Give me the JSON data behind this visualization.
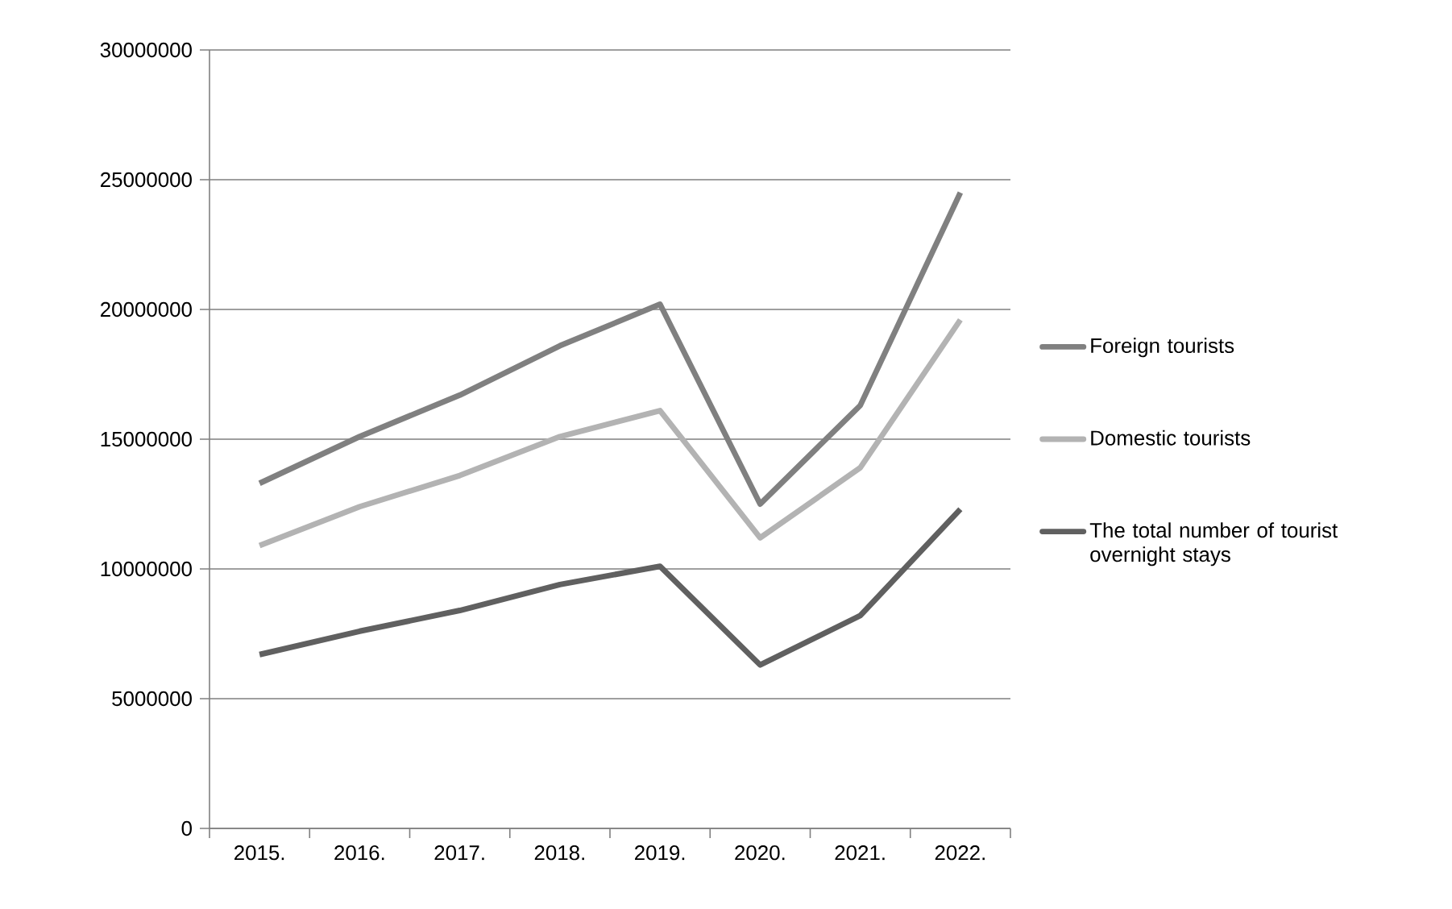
{
  "chart_data": {
    "type": "line",
    "categories": [
      "2015.",
      "2016.",
      "2017.",
      "2018.",
      "2019.",
      "2020.",
      "2021.",
      "2022."
    ],
    "series": [
      {
        "name": "Foreign tourists",
        "color": "#808080",
        "values": [
          13300000,
          15100000,
          16700000,
          18600000,
          20200000,
          12500000,
          16300000,
          24500000
        ]
      },
      {
        "name": "Domestic tourists",
        "color": "#b3b3b3",
        "values": [
          10900000,
          12400000,
          13600000,
          15100000,
          16100000,
          11200000,
          13900000,
          19600000
        ]
      },
      {
        "name": "The total number of tourist overnight stays",
        "color": "#606060",
        "values": [
          6700000,
          7600000,
          8400000,
          9400000,
          10100000,
          6300000,
          8200000,
          12300000
        ]
      }
    ],
    "ylim": [
      0,
      30000000
    ],
    "yticks": [
      0,
      5000000,
      10000000,
      15000000,
      20000000,
      25000000,
      30000000
    ],
    "grid": "y",
    "legend": "right",
    "marker": "none",
    "line_style": "solid"
  }
}
